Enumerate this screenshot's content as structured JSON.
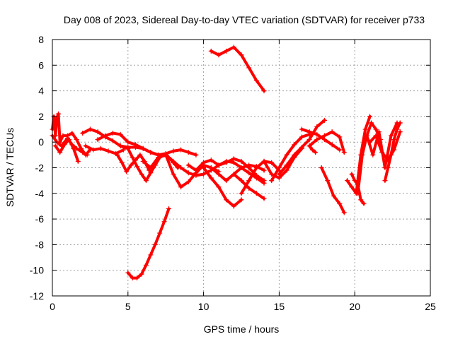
{
  "chart_data": {
    "type": "scatter",
    "title": "Day 008 of 2023, Sidereal Day-to-day VTEC variation (SDTVAR) for receiver p733",
    "xlabel": "GPS time / hours",
    "ylabel": "SDTVAR / TECUs",
    "xlim": [
      0,
      25
    ],
    "ylim": [
      -12,
      8
    ],
    "xticks": [
      0,
      5,
      10,
      15,
      20,
      25
    ],
    "yticks": [
      -12,
      -10,
      -8,
      -6,
      -4,
      -2,
      0,
      2,
      4,
      6,
      8
    ],
    "grid": true,
    "marker": "+",
    "color": "#ff0000",
    "series": [
      {
        "name": "arc-01",
        "x": [
          0.0,
          0.1,
          0.2,
          0.3,
          0.4,
          0.5,
          0.7,
          1.0,
          1.3,
          1.6,
          1.9,
          2.2,
          2.5
        ],
        "y": [
          1.0,
          2.0,
          0.5,
          1.9,
          2.2,
          0.0,
          0.5,
          0.5,
          0.7,
          0.2,
          -0.5,
          -1.0,
          -0.6
        ]
      },
      {
        "name": "arc-02",
        "x": [
          0.0,
          0.3,
          0.6,
          1.0,
          1.3,
          1.6,
          2.0,
          2.3
        ],
        "y": [
          0.5,
          0.0,
          -0.3,
          0.3,
          -0.2,
          -0.5,
          -0.8,
          -1.0
        ]
      },
      {
        "name": "arc-03",
        "x": [
          0.2,
          0.5,
          0.8,
          1.1,
          1.4,
          1.7
        ],
        "y": [
          -0.3,
          -0.8,
          -0.2,
          0.2,
          -0.5,
          -1.5
        ]
      },
      {
        "name": "arc-04",
        "x": [
          2.0,
          2.5,
          3.0,
          3.5,
          4.0,
          4.5,
          5.0
        ],
        "y": [
          0.7,
          1.0,
          0.8,
          0.4,
          0.1,
          -0.3,
          -0.5
        ]
      },
      {
        "name": "arc-05",
        "x": [
          2.2,
          2.7,
          3.2,
          3.7,
          4.2,
          4.7
        ],
        "y": [
          -0.3,
          -0.6,
          -0.5,
          -0.7,
          -0.9,
          -0.6
        ]
      },
      {
        "name": "arc-06",
        "x": [
          3.0,
          3.5,
          4.0,
          4.5,
          5.0,
          5.5,
          6.0,
          6.5,
          7.0
        ],
        "y": [
          0.2,
          0.5,
          0.7,
          0.6,
          0.0,
          -0.2,
          -0.5,
          -0.8,
          -1.0
        ]
      },
      {
        "name": "arc-07",
        "x": [
          4.5,
          5.0,
          5.5,
          6.0,
          6.5,
          7.0,
          7.5,
          8.0,
          8.5,
          9.0,
          9.5
        ],
        "y": [
          -0.3,
          -0.4,
          -0.4,
          -0.5,
          -0.8,
          -1.0,
          -0.9,
          -0.7,
          -0.6,
          -0.8,
          -1.0
        ]
      },
      {
        "name": "arc-08",
        "x": [
          4.3,
          4.6,
          4.9,
          5.2,
          5.5,
          5.8,
          6.1,
          6.4
        ],
        "y": [
          -1.0,
          -1.6,
          -2.3,
          -1.8,
          -1.4,
          -1.0,
          -1.5,
          -2.2
        ]
      },
      {
        "name": "arc-09",
        "x": [
          5.0,
          5.3,
          5.6,
          5.9,
          6.2,
          6.5,
          6.8,
          7.1,
          7.4,
          7.7,
          8.0,
          8.3
        ],
        "y": [
          -0.5,
          -1.2,
          -1.9,
          -2.5,
          -3.0,
          -2.4,
          -1.8,
          -1.2,
          -1.0,
          -1.2,
          -1.6,
          -2.0
        ]
      },
      {
        "name": "arc-10",
        "x": [
          6.0,
          6.5,
          7.0,
          7.5,
          8.0,
          8.5,
          9.0,
          9.5,
          10.0,
          10.5,
          11.0
        ],
        "y": [
          -1.5,
          -2.0,
          -1.2,
          -1.0,
          -2.5,
          -3.5,
          -3.1,
          -2.4,
          -1.8,
          -2.0,
          -2.3
        ]
      },
      {
        "name": "arc-11",
        "x": [
          7.5,
          8.0,
          8.5,
          9.0,
          9.5,
          10.0,
          10.5,
          11.0,
          11.5,
          12.0,
          12.5,
          13.0,
          13.5,
          14.0
        ],
        "y": [
          -1.0,
          -1.5,
          -2.0,
          -2.4,
          -2.6,
          -2.5,
          -2.2,
          -1.8,
          -1.5,
          -1.6,
          -2.0,
          -2.4,
          -2.8,
          -3.2
        ]
      },
      {
        "name": "arc-12",
        "x": [
          9.0,
          9.5,
          10.0,
          10.5,
          11.0,
          11.5,
          12.0,
          12.5,
          13.0,
          13.5,
          14.0
        ],
        "y": [
          -1.8,
          -2.2,
          -1.6,
          -1.4,
          -1.8,
          -1.6,
          -1.3,
          -1.5,
          -2.0,
          -2.6,
          -3.0
        ]
      },
      {
        "name": "arc-13",
        "x": [
          10.0,
          10.5,
          11.0,
          11.5,
          12.0,
          12.5
        ],
        "y": [
          -2.0,
          -2.8,
          -3.5,
          -4.5,
          -5.0,
          -4.5
        ]
      },
      {
        "name": "arc-14",
        "x": [
          10.5,
          11.0,
          11.5,
          12.0,
          12.5,
          13.0,
          13.5,
          14.0
        ],
        "y": [
          -2.0,
          -2.5,
          -3.0,
          -2.5,
          -2.0,
          -1.8,
          -1.9,
          -2.2
        ]
      },
      {
        "name": "arc-15",
        "x": [
          12.0,
          12.5,
          13.0,
          13.5,
          14.0
        ],
        "y": [
          -2.5,
          -3.0,
          -3.6,
          -4.0,
          -4.4
        ]
      },
      {
        "name": "arc-16",
        "x": [
          12.5,
          13.0,
          13.5,
          14.0,
          14.5,
          15.0
        ],
        "y": [
          -4.0,
          -3.0,
          -2.0,
          -1.5,
          -1.6,
          -2.2
        ]
      },
      {
        "name": "arc-17",
        "x": [
          14.0,
          14.5,
          15.0,
          15.5,
          16.0,
          16.5
        ],
        "y": [
          -1.5,
          -2.5,
          -2.8,
          -2.2,
          -1.2,
          -0.5
        ]
      },
      {
        "name": "arc-18",
        "x": [
          14.5,
          15.0,
          15.5,
          16.0,
          16.5,
          17.0
        ],
        "y": [
          -3.0,
          -2.0,
          -1.0,
          -0.2,
          0.4,
          0.6
        ]
      },
      {
        "name": "arc-19",
        "x": [
          15.0,
          15.5,
          16.0,
          16.5,
          17.0,
          17.5,
          18.0
        ],
        "y": [
          -2.5,
          -1.8,
          -1.0,
          -0.4,
          0.2,
          1.2,
          1.7
        ]
      },
      {
        "name": "arc-20",
        "x": [
          16.5,
          17.0,
          17.5,
          18.0,
          18.5,
          19.0
        ],
        "y": [
          1.0,
          0.8,
          0.6,
          0.2,
          -0.2,
          -0.6
        ]
      },
      {
        "name": "arc-21",
        "x": [
          17.0,
          17.5,
          18.0,
          18.5,
          19.0,
          19.3
        ],
        "y": [
          -0.3,
          0.2,
          0.5,
          0.8,
          0.4,
          -0.8
        ]
      },
      {
        "name": "arc-22",
        "x": [
          17.0,
          17.2,
          17.4
        ],
        "y": [
          -0.3,
          -0.6,
          -0.8
        ]
      },
      {
        "name": "arc-23",
        "x": [
          17.8,
          18.2,
          18.6,
          19.0,
          19.3
        ],
        "y": [
          -2.0,
          -3.0,
          -4.2,
          -4.8,
          -5.5
        ]
      },
      {
        "name": "arc-24",
        "x": [
          19.5,
          19.8,
          20.1,
          20.4,
          20.7,
          21.0
        ],
        "y": [
          -3.0,
          -3.5,
          -4.0,
          -1.0,
          1.0,
          2.0
        ]
      },
      {
        "name": "arc-25",
        "x": [
          19.8,
          20.0,
          20.2,
          20.4,
          20.6
        ],
        "y": [
          -2.5,
          -3.0,
          -3.3,
          -4.5,
          -4.8
        ]
      },
      {
        "name": "arc-26",
        "x": [
          20.2,
          20.5,
          20.8,
          21.1,
          21.4,
          21.7
        ],
        "y": [
          -4.0,
          -1.0,
          0.5,
          1.5,
          1.0,
          0.2
        ]
      },
      {
        "name": "arc-27",
        "x": [
          20.8,
          21.2,
          21.6,
          22.0,
          22.4,
          22.8
        ],
        "y": [
          0.5,
          -1.0,
          0.8,
          -2.0,
          0.5,
          1.5
        ]
      },
      {
        "name": "arc-28",
        "x": [
          21.0,
          21.4,
          21.8,
          22.2,
          22.6,
          23.0
        ],
        "y": [
          0.0,
          0.5,
          -0.8,
          -1.4,
          -0.6,
          0.8
        ]
      },
      {
        "name": "arc-29",
        "x": [
          22.0,
          22.2,
          22.4,
          22.6,
          22.8,
          23.0
        ],
        "y": [
          -3.0,
          -2.0,
          -1.0,
          0.2,
          1.0,
          1.5
        ]
      },
      {
        "name": "arc-30",
        "x": [
          10.5,
          11.0,
          11.5,
          12.0,
          12.5,
          13.0,
          13.5,
          14.0
        ],
        "y": [
          7.1,
          6.8,
          7.1,
          7.4,
          6.8,
          5.8,
          4.8,
          4.0
        ]
      },
      {
        "name": "arc-31",
        "x": [
          5.0,
          5.3,
          5.6,
          5.9,
          6.2,
          6.5,
          6.8,
          7.1,
          7.4,
          7.7
        ],
        "y": [
          -10.2,
          -10.6,
          -10.6,
          -10.3,
          -9.6,
          -8.8,
          -8.0,
          -7.1,
          -6.2,
          -5.2
        ]
      }
    ]
  }
}
